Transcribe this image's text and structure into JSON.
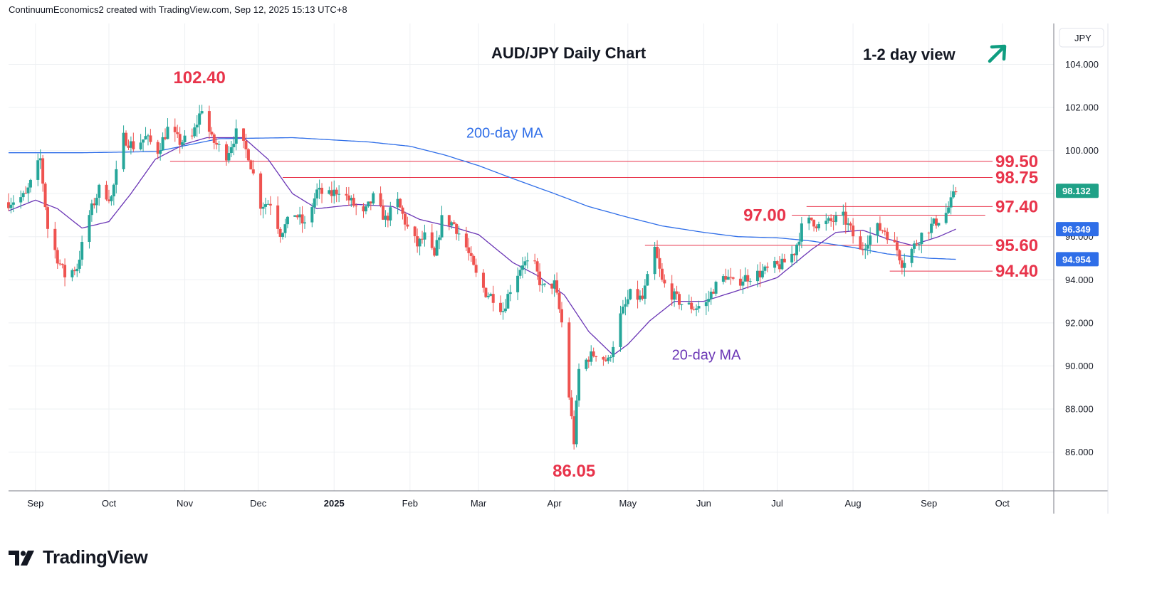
{
  "header": {
    "credit": "ContinuumEconomics2 created with TradingView.com, Sep 12, 2025 15:13 UTC+8"
  },
  "footer": {
    "brand": "TradingView"
  },
  "colors": {
    "up": "#26a69a",
    "down": "#ef5350",
    "level": "#e8344b",
    "ma200": "#2f6ee8",
    "ma20": "#6a35b5",
    "arrow": "#0f9d80",
    "ma20_tag": "#2f6ee8",
    "ma200_tag": "#2f6ee8",
    "last_tag": "#1fa187"
  },
  "chart_data": {
    "type": "candlestick",
    "title": "AUD/JPY Daily Chart",
    "subtitle": "1-2 day view",
    "view_icon": "arrow-up-right-icon",
    "currency": "JPY",
    "ylim": [
      84.2,
      105.9
    ],
    "y_ticks": [
      "104.000",
      "102.000",
      "100.000",
      "98.000",
      "96.000",
      "94.000",
      "92.000",
      "90.000",
      "88.000",
      "86.000"
    ],
    "y_tick_values": [
      104,
      102,
      100,
      98,
      96,
      94,
      92,
      90,
      88,
      86
    ],
    "x_ticks": [
      {
        "label": "Sep",
        "date": "2024-09-01"
      },
      {
        "label": "Oct",
        "date": "2024-10-01"
      },
      {
        "label": "Nov",
        "date": "2024-11-01"
      },
      {
        "label": "Dec",
        "date": "2024-12-01"
      },
      {
        "label": "2025",
        "date": "2025-01-01",
        "bold": true
      },
      {
        "label": "Feb",
        "date": "2025-02-01"
      },
      {
        "label": "Mar",
        "date": "2025-03-01"
      },
      {
        "label": "Apr",
        "date": "2025-04-01"
      },
      {
        "label": "May",
        "date": "2025-05-01"
      },
      {
        "label": "Jun",
        "date": "2025-06-01"
      },
      {
        "label": "Jul",
        "date": "2025-07-01"
      },
      {
        "label": "Aug",
        "date": "2025-08-01"
      },
      {
        "label": "Sep",
        "date": "2025-09-01"
      },
      {
        "label": "Oct",
        "date": "2025-10-01"
      }
    ],
    "x_range": [
      "2024-08-21",
      "2025-10-22"
    ],
    "close_path": [
      [
        "2024-08-21",
        97.6
      ],
      [
        "2024-08-28",
        97.9
      ],
      [
        "2024-09-03",
        99.6
      ],
      [
        "2024-09-06",
        96.4
      ],
      [
        "2024-09-10",
        95.0
      ],
      [
        "2024-09-13",
        94.2
      ],
      [
        "2024-09-18",
        94.6
      ],
      [
        "2024-09-23",
        97.0
      ],
      [
        "2024-09-27",
        98.2
      ],
      [
        "2024-10-02",
        97.8
      ],
      [
        "2024-10-07",
        100.6
      ],
      [
        "2024-10-11",
        100.2
      ],
      [
        "2024-10-16",
        100.6
      ],
      [
        "2024-10-21",
        100.0
      ],
      [
        "2024-10-25",
        101.0
      ],
      [
        "2024-10-30",
        100.4
      ],
      [
        "2024-11-04",
        100.6
      ],
      [
        "2024-11-08",
        102.0
      ],
      [
        "2024-11-12",
        100.5
      ],
      [
        "2024-11-18",
        99.8
      ],
      [
        "2024-11-22",
        100.8
      ],
      [
        "2024-11-27",
        99.8
      ],
      [
        "2024-12-02",
        97.5
      ],
      [
        "2024-12-06",
        97.6
      ],
      [
        "2024-12-10",
        96.2
      ],
      [
        "2024-12-16",
        97.1
      ],
      [
        "2024-12-20",
        96.5
      ],
      [
        "2024-12-25",
        98.1
      ],
      [
        "2024-12-30",
        97.9
      ],
      [
        "2025-01-03",
        98.2
      ],
      [
        "2025-01-08",
        97.6
      ],
      [
        "2025-01-13",
        97.0
      ],
      [
        "2025-01-17",
        97.8
      ],
      [
        "2025-01-22",
        96.8
      ],
      [
        "2025-01-27",
        97.6
      ],
      [
        "2025-01-31",
        96.4
      ],
      [
        "2025-02-04",
        95.6
      ],
      [
        "2025-02-07",
        96.0
      ],
      [
        "2025-02-11",
        95.0
      ],
      [
        "2025-02-14",
        96.8
      ],
      [
        "2025-02-19",
        96.6
      ],
      [
        "2025-02-24",
        95.5
      ],
      [
        "2025-02-28",
        94.2
      ],
      [
        "2025-03-04",
        93.4
      ],
      [
        "2025-03-07",
        93.2
      ],
      [
        "2025-03-11",
        92.6
      ],
      [
        "2025-03-14",
        93.6
      ],
      [
        "2025-03-19",
        94.8
      ],
      [
        "2025-03-24",
        94.6
      ],
      [
        "2025-03-27",
        93.6
      ],
      [
        "2025-04-01",
        93.8
      ],
      [
        "2025-04-04",
        92.0
      ],
      [
        "2025-04-07",
        88.6
      ],
      [
        "2025-04-09",
        86.5
      ],
      [
        "2025-04-11",
        89.8
      ],
      [
        "2025-04-15",
        90.4
      ],
      [
        "2025-04-18",
        90.6
      ],
      [
        "2025-04-23",
        90.2
      ],
      [
        "2025-04-28",
        92.3
      ],
      [
        "2025-05-02",
        93.3
      ],
      [
        "2025-05-07",
        93.1
      ],
      [
        "2025-05-12",
        95.4
      ],
      [
        "2025-05-15",
        93.9
      ],
      [
        "2025-05-20",
        93.2
      ],
      [
        "2025-05-23",
        92.9
      ],
      [
        "2025-05-28",
        92.7
      ],
      [
        "2025-06-02",
        92.9
      ],
      [
        "2025-06-05",
        93.6
      ],
      [
        "2025-06-10",
        94.2
      ],
      [
        "2025-06-13",
        93.8
      ],
      [
        "2025-06-18",
        94.1
      ],
      [
        "2025-06-24",
        94.3
      ],
      [
        "2025-06-30",
        94.6
      ],
      [
        "2025-07-03",
        94.7
      ],
      [
        "2025-07-08",
        95.3
      ],
      [
        "2025-07-11",
        96.4
      ],
      [
        "2025-07-15",
        96.8
      ],
      [
        "2025-07-18",
        96.5
      ],
      [
        "2025-07-23",
        96.7
      ],
      [
        "2025-07-28",
        96.9
      ],
      [
        "2025-07-31",
        96.3
      ],
      [
        "2025-08-04",
        95.3
      ],
      [
        "2025-08-07",
        95.9
      ],
      [
        "2025-08-11",
        96.4
      ],
      [
        "2025-08-14",
        96.3
      ],
      [
        "2025-08-19",
        95.4
      ],
      [
        "2025-08-21",
        94.8
      ],
      [
        "2025-08-25",
        95.4
      ],
      [
        "2025-08-29",
        96.1
      ],
      [
        "2025-09-03",
        96.6
      ],
      [
        "2025-09-08",
        97.1
      ],
      [
        "2025-09-10",
        97.6
      ],
      [
        "2025-09-12",
        98.13
      ]
    ],
    "ma200_path": [
      [
        "2024-08-21",
        99.9
      ],
      [
        "2024-09-20",
        99.9
      ],
      [
        "2024-10-20",
        99.95
      ],
      [
        "2024-11-15",
        100.55
      ],
      [
        "2024-12-15",
        100.6
      ],
      [
        "2025-01-15",
        100.4
      ],
      [
        "2025-02-01",
        100.2
      ],
      [
        "2025-02-15",
        99.8
      ],
      [
        "2025-03-01",
        99.3
      ],
      [
        "2025-03-15",
        98.7
      ],
      [
        "2025-04-01",
        98.0
      ],
      [
        "2025-04-15",
        97.4
      ],
      [
        "2025-05-01",
        96.9
      ],
      [
        "2025-05-15",
        96.5
      ],
      [
        "2025-06-01",
        96.2
      ],
      [
        "2025-06-15",
        96.0
      ],
      [
        "2025-07-01",
        95.95
      ],
      [
        "2025-07-15",
        95.8
      ],
      [
        "2025-08-01",
        95.5
      ],
      [
        "2025-08-15",
        95.2
      ],
      [
        "2025-09-01",
        95.0
      ],
      [
        "2025-09-12",
        94.95
      ]
    ],
    "ma20_path": [
      [
        "2024-08-21",
        97.2
      ],
      [
        "2024-09-01",
        97.7
      ],
      [
        "2024-09-10",
        97.3
      ],
      [
        "2024-09-20",
        96.4
      ],
      [
        "2024-10-01",
        96.7
      ],
      [
        "2024-10-10",
        98.0
      ],
      [
        "2024-10-20",
        99.6
      ],
      [
        "2024-11-01",
        100.3
      ],
      [
        "2024-11-10",
        100.6
      ],
      [
        "2024-11-25",
        100.6
      ],
      [
        "2024-12-05",
        99.6
      ],
      [
        "2024-12-15",
        98.0
      ],
      [
        "2024-12-25",
        97.3
      ],
      [
        "2025-01-10",
        97.5
      ],
      [
        "2025-01-25",
        97.4
      ],
      [
        "2025-02-05",
        96.8
      ],
      [
        "2025-02-20",
        96.4
      ],
      [
        "2025-03-01",
        96.1
      ],
      [
        "2025-03-15",
        94.8
      ],
      [
        "2025-03-25",
        94.2
      ],
      [
        "2025-04-05",
        93.3
      ],
      [
        "2025-04-15",
        91.6
      ],
      [
        "2025-04-25",
        90.5
      ],
      [
        "2025-05-01",
        91.0
      ],
      [
        "2025-05-10",
        92.1
      ],
      [
        "2025-05-20",
        93.0
      ],
      [
        "2025-06-01",
        93.0
      ],
      [
        "2025-06-15",
        93.5
      ],
      [
        "2025-07-01",
        94.1
      ],
      [
        "2025-07-15",
        95.4
      ],
      [
        "2025-07-25",
        96.2
      ],
      [
        "2025-08-05",
        96.3
      ],
      [
        "2025-08-15",
        95.9
      ],
      [
        "2025-08-25",
        95.6
      ],
      [
        "2025-09-05",
        96.0
      ],
      [
        "2025-09-12",
        96.35
      ]
    ],
    "price_tags": [
      {
        "value": 98.132,
        "label": "98.132",
        "kind": "last"
      },
      {
        "value": 96.349,
        "label": "96.349",
        "kind": "ma20"
      },
      {
        "value": 94.954,
        "label": "94.954",
        "kind": "ma200"
      }
    ],
    "levels": [
      {
        "value": 99.5,
        "label": "99.50",
        "from": "2024-10-26",
        "to": "2025-09-27",
        "label_side": "right"
      },
      {
        "value": 98.75,
        "label": "98.75",
        "from": "2024-12-11",
        "to": "2025-09-27",
        "label_side": "right"
      },
      {
        "value": 97.4,
        "label": "97.40",
        "from": "2025-07-13",
        "to": "2025-09-27",
        "label_side": "right"
      },
      {
        "value": 97.0,
        "label": "97.00",
        "from": "2025-07-07",
        "to": "2025-09-24",
        "label_side": "left"
      },
      {
        "value": 95.6,
        "label": "95.60",
        "from": "2025-05-08",
        "to": "2025-09-27",
        "label_side": "right"
      },
      {
        "value": 94.4,
        "label": "94.40",
        "from": "2025-08-16",
        "to": "2025-09-27",
        "label_side": "right"
      }
    ],
    "annotations": [
      {
        "text": "102.40",
        "date": "2024-11-07",
        "value": 102.4,
        "pos": "above"
      },
      {
        "text": "86.05",
        "date": "2025-04-09",
        "value": 86.05,
        "pos": "below"
      }
    ],
    "ma_labels": [
      {
        "text": "200-day MA",
        "kind": "ma200",
        "date": "2025-02-24",
        "value": 100.6
      },
      {
        "text": "20-day MA",
        "kind": "ma20",
        "date": "2025-05-19",
        "value": 90.3
      }
    ]
  }
}
